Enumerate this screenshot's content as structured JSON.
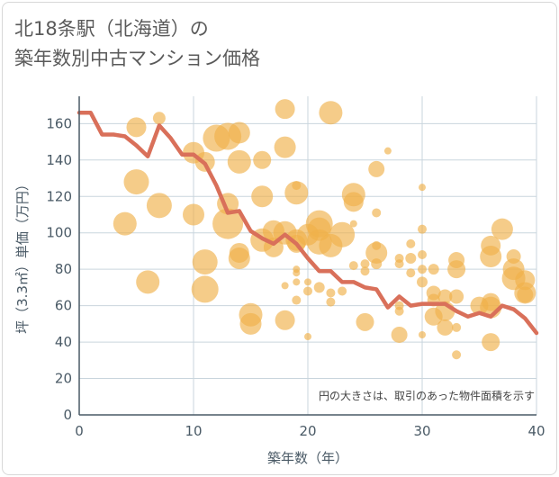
{
  "title": {
    "line1": "北18条駅（北海道）の",
    "line2": "築年数別中古マンション価格"
  },
  "colors": {
    "bubble": "#f0b04a",
    "line": "#d9705a",
    "grid": "#c9d5dd",
    "text": "#4a5a66"
  },
  "chart_data": {
    "type": "scatter",
    "xlabel": "築年数（年）",
    "ylabel": "坪（3.3㎡）単価（万円）",
    "xlim": [
      0,
      40
    ],
    "ylim": [
      0,
      175
    ],
    "xticks": [
      0,
      10,
      20,
      30,
      40
    ],
    "yticks": [
      0,
      20,
      40,
      60,
      80,
      100,
      120,
      140,
      160
    ],
    "grid": true,
    "annotation": "円の大きさは、取引のあった物件面積を示す",
    "bubbles": [
      {
        "x": 4,
        "y": 105,
        "s": 13
      },
      {
        "x": 5,
        "y": 128,
        "s": 14
      },
      {
        "x": 5,
        "y": 158,
        "s": 11
      },
      {
        "x": 6,
        "y": 73,
        "s": 13
      },
      {
        "x": 7,
        "y": 163,
        "s": 7
      },
      {
        "x": 7,
        "y": 115,
        "s": 14
      },
      {
        "x": 10,
        "y": 144,
        "s": 12
      },
      {
        "x": 10,
        "y": 110,
        "s": 12
      },
      {
        "x": 11,
        "y": 84,
        "s": 14
      },
      {
        "x": 11,
        "y": 69,
        "s": 15
      },
      {
        "x": 11,
        "y": 139,
        "s": 11
      },
      {
        "x": 12,
        "y": 152,
        "s": 15
      },
      {
        "x": 13,
        "y": 153,
        "s": 15
      },
      {
        "x": 13,
        "y": 116,
        "s": 12
      },
      {
        "x": 13,
        "y": 105,
        "s": 17
      },
      {
        "x": 14,
        "y": 155,
        "s": 12
      },
      {
        "x": 14,
        "y": 139,
        "s": 13
      },
      {
        "x": 14,
        "y": 89,
        "s": 11
      },
      {
        "x": 14,
        "y": 86,
        "s": 12
      },
      {
        "x": 15,
        "y": 55,
        "s": 13
      },
      {
        "x": 15,
        "y": 50,
        "s": 12
      },
      {
        "x": 16,
        "y": 140,
        "s": 10
      },
      {
        "x": 16,
        "y": 120,
        "s": 12
      },
      {
        "x": 16,
        "y": 96,
        "s": 13
      },
      {
        "x": 17,
        "y": 92,
        "s": 11
      },
      {
        "x": 17,
        "y": 101,
        "s": 12
      },
      {
        "x": 18,
        "y": 168,
        "s": 11
      },
      {
        "x": 18,
        "y": 147,
        "s": 12
      },
      {
        "x": 18,
        "y": 100,
        "s": 13
      },
      {
        "x": 18,
        "y": 52,
        "s": 11
      },
      {
        "x": 18,
        "y": 71,
        "s": 4
      },
      {
        "x": 19,
        "y": 126,
        "s": 5
      },
      {
        "x": 19,
        "y": 122,
        "s": 13
      },
      {
        "x": 19,
        "y": 96,
        "s": 12
      },
      {
        "x": 19,
        "y": 94,
        "s": 10
      },
      {
        "x": 19,
        "y": 80,
        "s": 4
      },
      {
        "x": 19,
        "y": 78,
        "s": 4
      },
      {
        "x": 19,
        "y": 73,
        "s": 4
      },
      {
        "x": 19,
        "y": 63,
        "s": 5
      },
      {
        "x": 20,
        "y": 43,
        "s": 4
      },
      {
        "x": 20,
        "y": 73,
        "s": 4
      },
      {
        "x": 20,
        "y": 68,
        "s": 5
      },
      {
        "x": 20,
        "y": 99,
        "s": 12
      },
      {
        "x": 21,
        "y": 105,
        "s": 15
      },
      {
        "x": 21,
        "y": 102,
        "s": 13
      },
      {
        "x": 21,
        "y": 95,
        "s": 14
      },
      {
        "x": 21,
        "y": 70,
        "s": 6
      },
      {
        "x": 22,
        "y": 166,
        "s": 13
      },
      {
        "x": 22,
        "y": 93,
        "s": 13
      },
      {
        "x": 22,
        "y": 62,
        "s": 5
      },
      {
        "x": 22,
        "y": 67,
        "s": 5
      },
      {
        "x": 23,
        "y": 99,
        "s": 14
      },
      {
        "x": 23,
        "y": 68,
        "s": 5
      },
      {
        "x": 24,
        "y": 121,
        "s": 13
      },
      {
        "x": 24,
        "y": 117,
        "s": 11
      },
      {
        "x": 24,
        "y": 105,
        "s": 4
      },
      {
        "x": 24,
        "y": 82,
        "s": 5
      },
      {
        "x": 25,
        "y": 83,
        "s": 5
      },
      {
        "x": 25,
        "y": 79,
        "s": 5
      },
      {
        "x": 25,
        "y": 51,
        "s": 10
      },
      {
        "x": 26,
        "y": 135,
        "s": 9
      },
      {
        "x": 26,
        "y": 111,
        "s": 5
      },
      {
        "x": 26,
        "y": 93,
        "s": 5
      },
      {
        "x": 26,
        "y": 89,
        "s": 12
      },
      {
        "x": 26,
        "y": 83,
        "s": 6
      },
      {
        "x": 27,
        "y": 145,
        "s": 4
      },
      {
        "x": 28,
        "y": 86,
        "s": 5
      },
      {
        "x": 28,
        "y": 83,
        "s": 5
      },
      {
        "x": 28,
        "y": 44,
        "s": 9
      },
      {
        "x": 28,
        "y": 60,
        "s": 5
      },
      {
        "x": 28,
        "y": 57,
        "s": 5
      },
      {
        "x": 29,
        "y": 94,
        "s": 5
      },
      {
        "x": 29,
        "y": 86,
        "s": 6
      },
      {
        "x": 29,
        "y": 78,
        "s": 5
      },
      {
        "x": 30,
        "y": 125,
        "s": 4
      },
      {
        "x": 30,
        "y": 102,
        "s": 5
      },
      {
        "x": 30,
        "y": 88,
        "s": 5
      },
      {
        "x": 30,
        "y": 80,
        "s": 5
      },
      {
        "x": 30,
        "y": 73,
        "s": 6
      },
      {
        "x": 30,
        "y": 44,
        "s": 4
      },
      {
        "x": 31,
        "y": 80,
        "s": 6
      },
      {
        "x": 31,
        "y": 67,
        "s": 8
      },
      {
        "x": 31,
        "y": 63,
        "s": 7
      },
      {
        "x": 31,
        "y": 54,
        "s": 10
      },
      {
        "x": 32,
        "y": 65,
        "s": 8
      },
      {
        "x": 32,
        "y": 57,
        "s": 11
      },
      {
        "x": 32,
        "y": 48,
        "s": 9
      },
      {
        "x": 33,
        "y": 85,
        "s": 9
      },
      {
        "x": 33,
        "y": 80,
        "s": 10
      },
      {
        "x": 33,
        "y": 65,
        "s": 8
      },
      {
        "x": 33,
        "y": 48,
        "s": 5
      },
      {
        "x": 33,
        "y": 33,
        "s": 5
      },
      {
        "x": 35,
        "y": 60,
        "s": 10
      },
      {
        "x": 36,
        "y": 93,
        "s": 11
      },
      {
        "x": 36,
        "y": 87,
        "s": 12
      },
      {
        "x": 36,
        "y": 62,
        "s": 10
      },
      {
        "x": 36,
        "y": 59,
        "s": 12
      },
      {
        "x": 36,
        "y": 40,
        "s": 10
      },
      {
        "x": 37,
        "y": 102,
        "s": 12
      },
      {
        "x": 38,
        "y": 87,
        "s": 8
      },
      {
        "x": 38,
        "y": 80,
        "s": 12
      },
      {
        "x": 38,
        "y": 75,
        "s": 13
      },
      {
        "x": 39,
        "y": 74,
        "s": 11
      },
      {
        "x": 39,
        "y": 67,
        "s": 12
      },
      {
        "x": 39,
        "y": 66,
        "s": 9
      }
    ],
    "line": {
      "x": [
        0,
        1,
        2,
        3,
        4,
        5,
        6,
        7,
        8,
        9,
        10,
        11,
        12,
        13,
        14,
        15,
        16,
        17,
        18,
        19,
        20,
        21,
        22,
        23,
        24,
        25,
        26,
        27,
        28,
        29,
        30,
        31,
        32,
        33,
        34,
        35,
        36,
        37,
        38,
        39,
        40
      ],
      "y": [
        166,
        166,
        154,
        154,
        153,
        148,
        142,
        159,
        152,
        143,
        143,
        138,
        126,
        111,
        112,
        101,
        97,
        94,
        99,
        94,
        86,
        79,
        79,
        73,
        73,
        70,
        69,
        59,
        65,
        60,
        61,
        61,
        61,
        57,
        54,
        56,
        54,
        60,
        58,
        53,
        45
      ]
    }
  }
}
